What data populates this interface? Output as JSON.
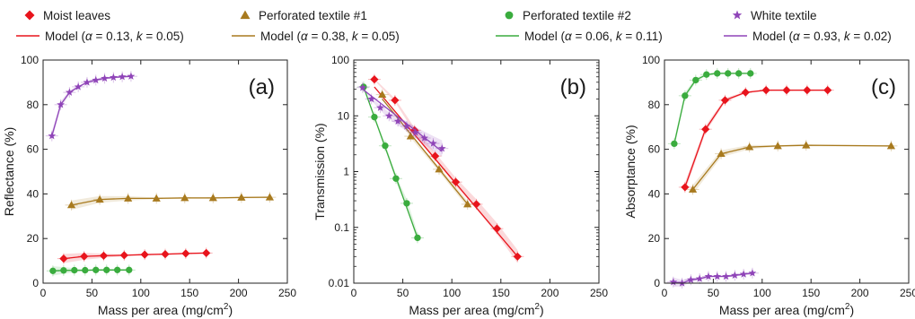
{
  "legend": {
    "markers": [
      {
        "key": "moist",
        "label": "Moist leaves",
        "color": "#e8141c",
        "shape": "diamond"
      },
      {
        "key": "perf1",
        "label": "Perforated textile #1",
        "color": "#a87a1e",
        "shape": "triangle"
      },
      {
        "key": "perf2",
        "label": "Perforated textile #2",
        "color": "#3aac3e",
        "shape": "circle"
      },
      {
        "key": "white",
        "label": "White textile",
        "color": "#8f44b8",
        "shape": "star"
      }
    ],
    "models": [
      {
        "key": "moist",
        "prefix": "Model (",
        "alpha_sym": "α",
        "eq1": " = 0.13, ",
        "k_sym": "k",
        "eq2": " = 0.05)",
        "color": "#e8141c"
      },
      {
        "key": "perf1",
        "prefix": "Model (",
        "alpha_sym": "α",
        "eq1": " = 0.38, ",
        "k_sym": "k",
        "eq2": " = 0.05)",
        "color": "#a87a1e"
      },
      {
        "key": "perf2",
        "prefix": "Model (",
        "alpha_sym": "α",
        "eq1": " = 0.06, ",
        "k_sym": "k",
        "eq2": " = 0.11)",
        "color": "#3aac3e"
      },
      {
        "key": "white",
        "prefix": "Model (",
        "alpha_sym": "α",
        "eq1": " = 0.93, ",
        "k_sym": "k",
        "eq2": " = 0.02)",
        "color": "#8f44b8"
      }
    ]
  },
  "xlabel": {
    "text": "Mass per area (mg/cm",
    "sup": "2",
    "close": ")"
  },
  "chart_data": [
    {
      "type": "scatter",
      "panel": "(a)",
      "ylabel": "Reflectance (%)",
      "yscale": "linear",
      "xlim": [
        0,
        250
      ],
      "ylim": [
        0,
        100
      ],
      "xticks": [
        "0",
        "50",
        "100",
        "150",
        "200",
        "250"
      ],
      "yticks": [
        "0",
        "20",
        "40",
        "60",
        "80",
        "100"
      ],
      "series": [
        {
          "key": "moist",
          "x": [
            21,
            42,
            62,
            83,
            104,
            125,
            146,
            167
          ],
          "y": [
            11,
            12,
            12.3,
            12.5,
            12.8,
            13,
            13.3,
            13.5
          ]
        },
        {
          "key": "perf1",
          "x": [
            29,
            58,
            87,
            116,
            145,
            174,
            203,
            232
          ],
          "y": [
            35,
            37.5,
            38,
            38,
            38.2,
            38.2,
            38.4,
            38.5
          ]
        },
        {
          "key": "perf2",
          "x": [
            10,
            21,
            32,
            43,
            54,
            65,
            76,
            88
          ],
          "y": [
            5.5,
            5.7,
            5.8,
            5.8,
            5.9,
            5.9,
            5.9,
            5.9
          ]
        },
        {
          "key": "white",
          "x": [
            9,
            18,
            27,
            36,
            45,
            54,
            63,
            72,
            81,
            90
          ],
          "y": [
            66,
            80,
            85.5,
            88,
            90,
            91,
            91.8,
            92.2,
            92.5,
            92.7
          ]
        }
      ]
    },
    {
      "type": "scatter",
      "panel": "(b)",
      "ylabel": "Transmission (%)",
      "yscale": "log",
      "xlim": [
        0,
        250
      ],
      "ylim": [
        0.01,
        100
      ],
      "xticks": [
        "0",
        "50",
        "100",
        "150",
        "200",
        "250"
      ],
      "yticks": [
        "0.01",
        "0.1",
        "1",
        "10",
        "100"
      ],
      "series": [
        {
          "key": "moist",
          "x": [
            21,
            42,
            62,
            83,
            104,
            125,
            146,
            167
          ],
          "y": [
            45,
            19,
            5.5,
            1.9,
            0.65,
            0.26,
            0.095,
            0.03
          ],
          "fit": {
            "x": [
              21,
              167
            ],
            "y": [
              33,
              0.03
            ]
          }
        },
        {
          "key": "perf1",
          "x": [
            29,
            58,
            87,
            116
          ],
          "y": [
            24,
            4.3,
            1.1,
            0.26
          ],
          "fit": {
            "x": [
              29,
              116
            ],
            "y": [
              20,
              0.26
            ]
          }
        },
        {
          "key": "perf2",
          "x": [
            10,
            21,
            32,
            43,
            54,
            65
          ],
          "y": [
            33,
            9.5,
            2.9,
            0.75,
            0.27,
            0.065
          ],
          "fit": {
            "x": [
              10,
              65
            ],
            "y": [
              33,
              0.065
            ]
          }
        },
        {
          "key": "white",
          "x": [
            9,
            18,
            27,
            36,
            45,
            54,
            63,
            72,
            81,
            90
          ],
          "y": [
            32,
            20,
            14,
            10,
            8,
            6.5,
            5,
            4,
            3.2,
            2.6
          ],
          "fit": {
            "x": [
              9,
              90
            ],
            "y": [
              30,
              2.3
            ]
          }
        }
      ]
    },
    {
      "type": "scatter",
      "panel": "(c)",
      "ylabel": "Absorptance (%)",
      "yscale": "linear",
      "xlim": [
        0,
        250
      ],
      "ylim": [
        0,
        100
      ],
      "xticks": [
        "0",
        "50",
        "100",
        "150",
        "200",
        "250"
      ],
      "yticks": [
        "0",
        "20",
        "40",
        "60",
        "80",
        "100"
      ],
      "series": [
        {
          "key": "moist",
          "x": [
            21,
            42,
            62,
            83,
            104,
            125,
            146,
            167
          ],
          "y": [
            43,
            69,
            82,
            85.5,
            86.5,
            86.5,
            86.5,
            86.5
          ]
        },
        {
          "key": "perf1",
          "x": [
            29,
            58,
            87,
            116,
            145,
            232
          ],
          "y": [
            42,
            58,
            61,
            61.5,
            61.8,
            61.5
          ]
        },
        {
          "key": "perf2",
          "x": [
            10,
            21,
            32,
            43,
            54,
            65,
            76,
            88
          ],
          "y": [
            62.5,
            84,
            91,
            93.5,
            94,
            94,
            94,
            94
          ]
        },
        {
          "key": "white",
          "x": [
            9,
            18,
            27,
            36,
            45,
            54,
            63,
            72,
            81,
            90
          ],
          "y": [
            0.5,
            0,
            1.5,
            2,
            3,
            3,
            3,
            3.5,
            4,
            4.5
          ]
        }
      ]
    }
  ]
}
